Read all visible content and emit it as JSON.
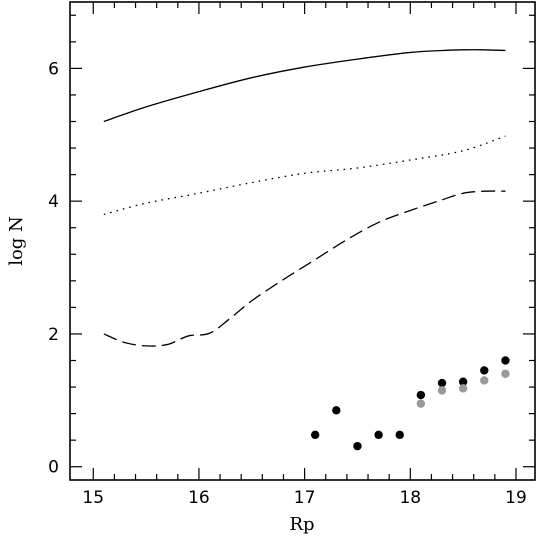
{
  "chart_data": {
    "type": "line",
    "title": "",
    "xlabel": "Rp",
    "ylabel": "log N",
    "xlim": [
      14.78,
      19.18
    ],
    "ylim": [
      -0.2,
      7.0
    ],
    "x_ticks": [
      15,
      16,
      17,
      18,
      19
    ],
    "y_ticks": [
      0,
      2,
      4,
      6
    ],
    "grid": false,
    "legend": "none",
    "colors": {
      "axis": "#000000",
      "line": "#000000",
      "black_points": "#000000",
      "grey_points": "#999999"
    },
    "series": [
      {
        "style": "solid",
        "x": [
          15.1,
          15.5,
          16.0,
          16.5,
          17.0,
          17.5,
          18.0,
          18.3,
          18.5,
          18.7,
          18.9
        ],
        "y": [
          5.2,
          5.42,
          5.65,
          5.86,
          6.02,
          6.14,
          6.24,
          6.27,
          6.28,
          6.28,
          6.27
        ]
      },
      {
        "style": "dotted",
        "x": [
          15.1,
          15.5,
          16.0,
          16.5,
          17.0,
          17.5,
          18.0,
          18.5,
          18.9
        ],
        "y": [
          3.8,
          3.97,
          4.12,
          4.28,
          4.42,
          4.5,
          4.62,
          4.76,
          4.98
        ]
      },
      {
        "style": "dashed",
        "x": [
          15.1,
          15.3,
          15.5,
          15.7,
          15.9,
          16.1,
          16.3,
          16.5,
          16.8,
          17.1,
          17.4,
          17.7,
          18.0,
          18.3,
          18.5,
          18.7,
          18.9
        ],
        "y": [
          2.0,
          1.87,
          1.82,
          1.84,
          1.97,
          2.01,
          2.24,
          2.5,
          2.82,
          3.12,
          3.42,
          3.68,
          3.86,
          4.02,
          4.12,
          4.15,
          4.15
        ]
      },
      {
        "style": "points-black",
        "x": [
          17.1,
          17.3,
          17.5,
          17.7,
          17.9,
          18.1,
          18.3,
          18.5,
          18.7,
          18.9
        ],
        "y": [
          0.48,
          0.85,
          0.31,
          0.48,
          0.48,
          1.08,
          1.26,
          1.28,
          1.45,
          1.6
        ]
      },
      {
        "style": "points-grey",
        "x": [
          18.1,
          18.3,
          18.5,
          18.7,
          18.9
        ],
        "y": [
          0.95,
          1.15,
          1.18,
          1.3,
          1.4
        ]
      }
    ]
  }
}
